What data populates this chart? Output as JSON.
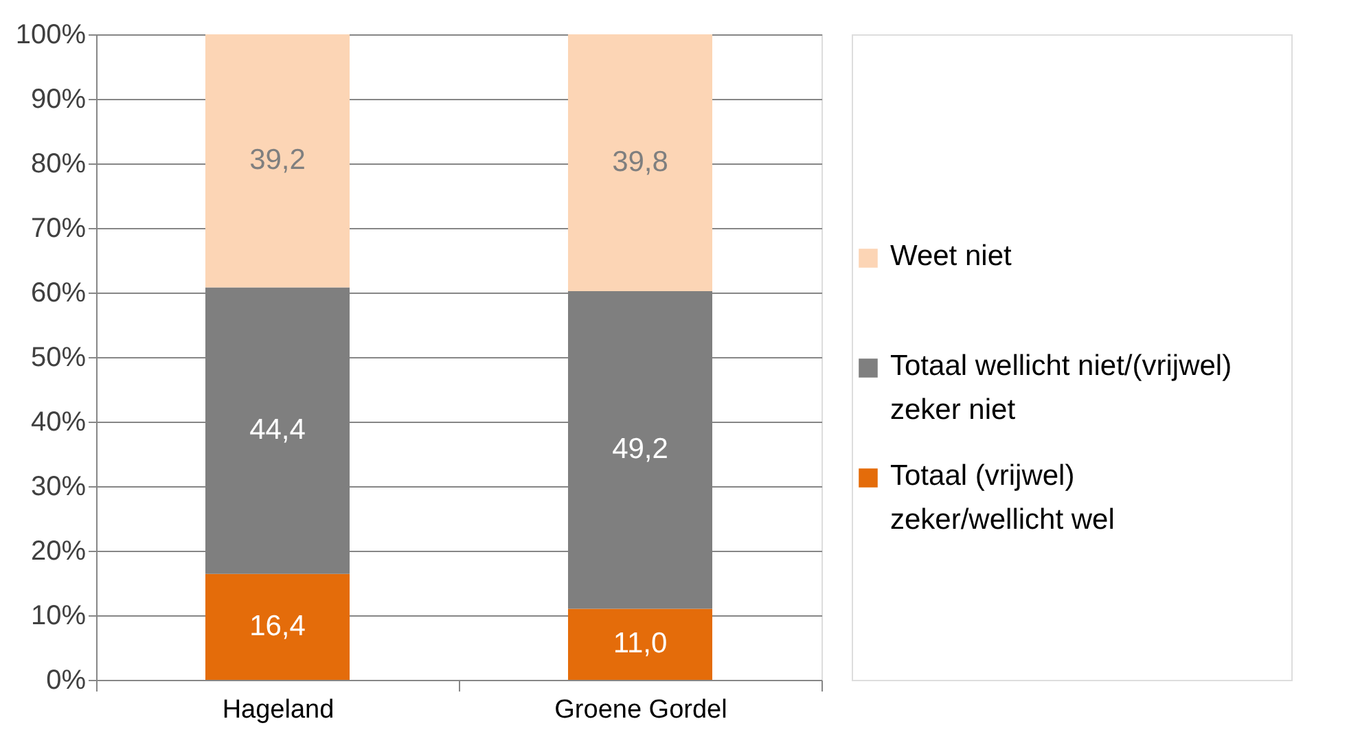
{
  "chart_data": {
    "type": "bar",
    "stacked": true,
    "categories": [
      "Hageland",
      "Groene Gordel"
    ],
    "series": [
      {
        "name": "Totaal (vrijwel) zeker/wellicht wel",
        "color": "#e46c0a",
        "values": [
          16.4,
          11.0
        ],
        "value_labels": [
          "16,4",
          "11,0"
        ]
      },
      {
        "name": "Totaal wellicht niet/(vrijwel) zeker niet",
        "color": "#7f7f7f",
        "values": [
          44.4,
          49.2
        ],
        "value_labels": [
          "44,4",
          "49,2"
        ]
      },
      {
        "name": "Weet niet",
        "color": "#fcd5b5",
        "values": [
          39.2,
          39.8
        ],
        "value_labels": [
          "39,2",
          "39,8"
        ]
      }
    ],
    "ylim": [
      0,
      100
    ],
    "yticks": [
      {
        "value": 0,
        "label": "0%"
      },
      {
        "value": 10,
        "label": "10%"
      },
      {
        "value": 20,
        "label": "20%"
      },
      {
        "value": 30,
        "label": "30%"
      },
      {
        "value": 40,
        "label": "40%"
      },
      {
        "value": 50,
        "label": "50%"
      },
      {
        "value": 60,
        "label": "60%"
      },
      {
        "value": 70,
        "label": "70%"
      },
      {
        "value": 80,
        "label": "80%"
      },
      {
        "value": 90,
        "label": "90%"
      },
      {
        "value": 100,
        "label": "100%"
      }
    ],
    "grid": "y",
    "legend": "right"
  }
}
